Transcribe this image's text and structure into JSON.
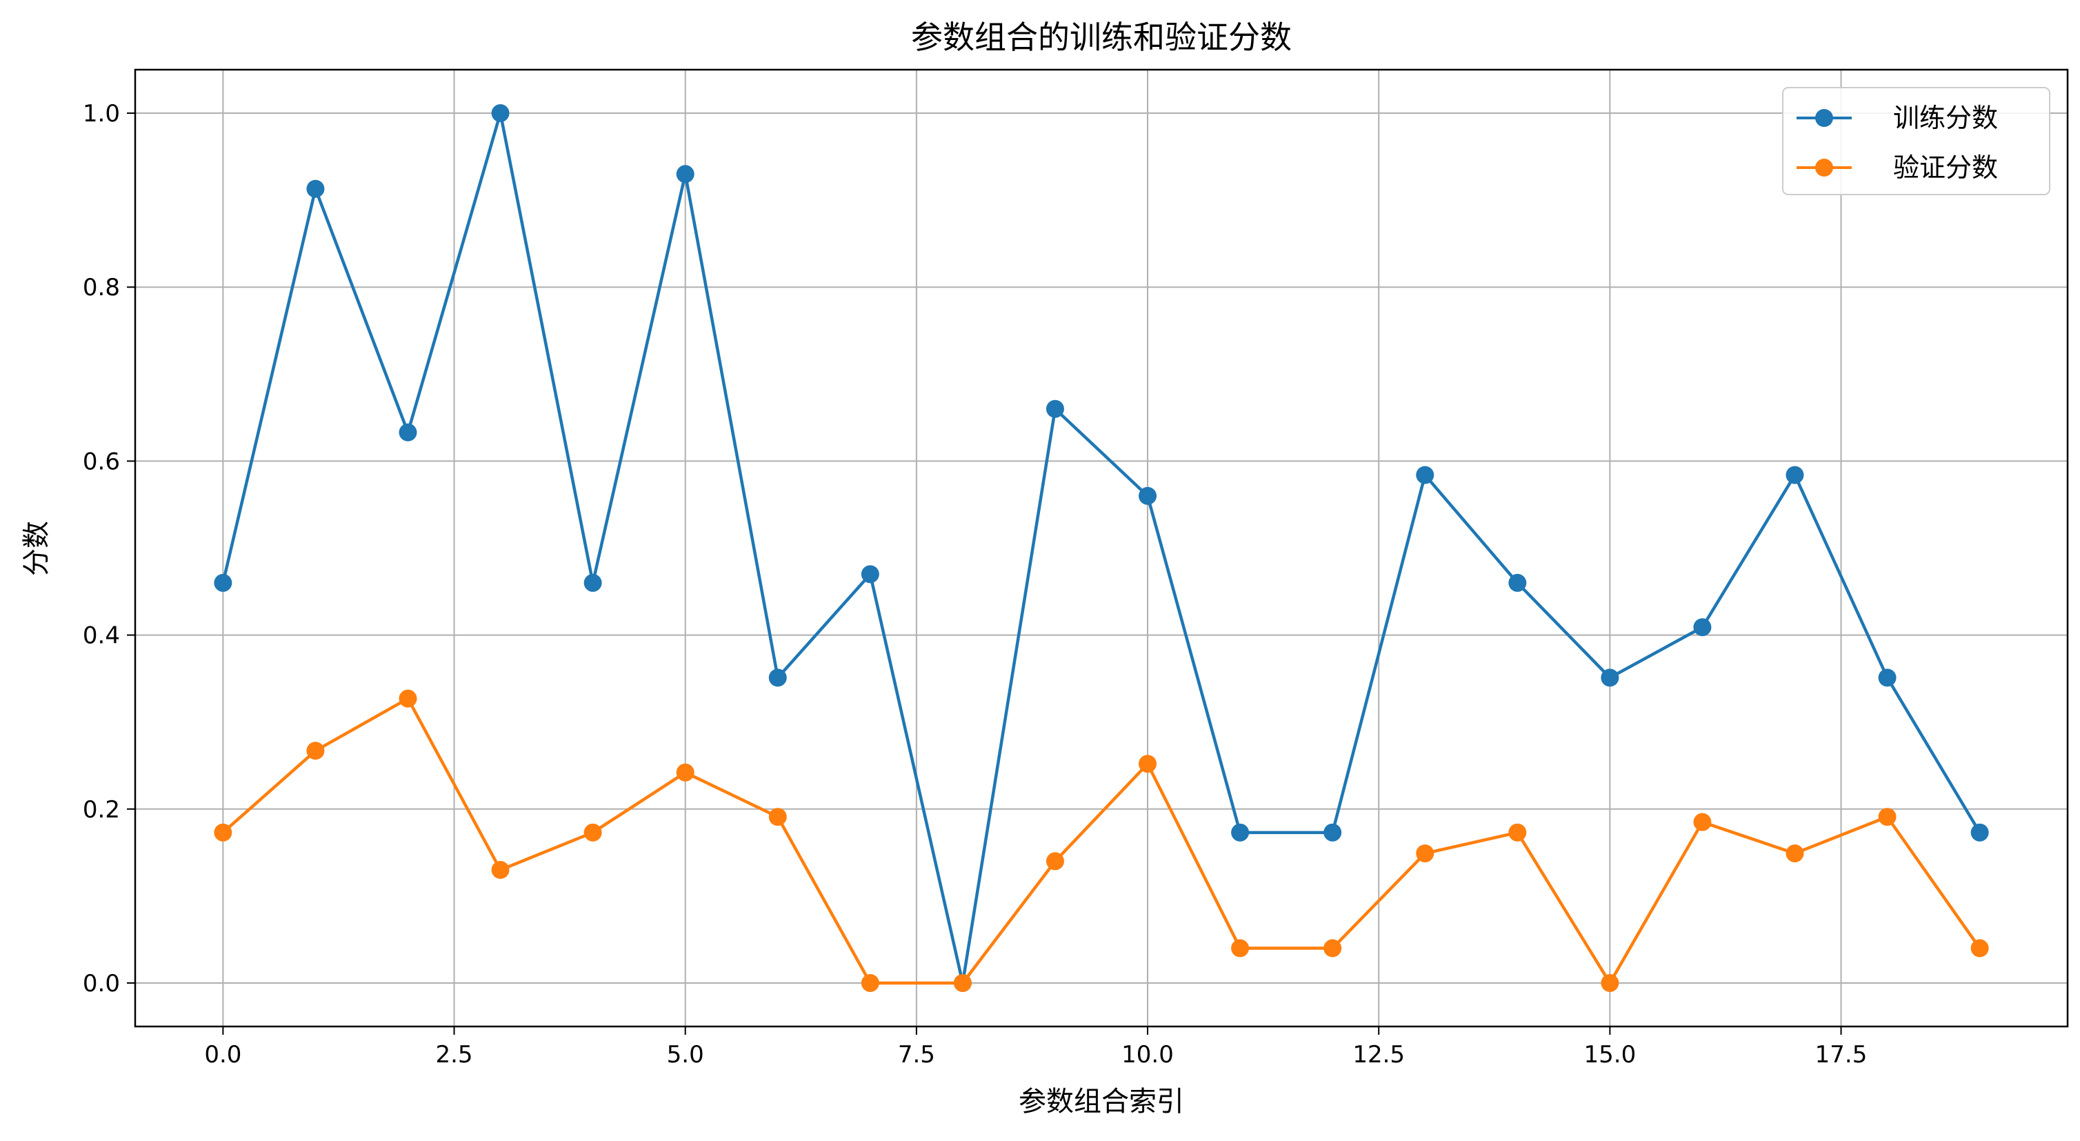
{
  "chart_data": {
    "type": "line",
    "title": "参数组合的训练和验证分数",
    "xlabel": "参数组合索引",
    "ylabel": "分数",
    "x": [
      0,
      1,
      2,
      3,
      4,
      5,
      6,
      7,
      8,
      9,
      10,
      11,
      12,
      13,
      14,
      15,
      16,
      17,
      18,
      19
    ],
    "xlim": [
      -0.95,
      19.95
    ],
    "ylim": [
      -0.05,
      1.05
    ],
    "xticks": [
      0,
      2.5,
      5,
      7.5,
      10,
      12.5,
      15,
      17.5
    ],
    "xtick_labels": [
      "0.0",
      "2.5",
      "5.0",
      "7.5",
      "10.0",
      "12.5",
      "15.0",
      "17.5"
    ],
    "yticks": [
      0,
      0.2,
      0.4,
      0.6,
      0.8,
      1.0
    ],
    "ytick_labels": [
      "0.0",
      "0.2",
      "0.4",
      "0.6",
      "0.8",
      "1.0"
    ],
    "grid": true,
    "legend_position": "top-right",
    "series": [
      {
        "name": "训练分数",
        "color": "#1f77b4",
        "marker": "circle",
        "values": [
          0.46,
          0.913,
          0.633,
          1.0,
          0.46,
          0.93,
          0.351,
          0.47,
          0.0,
          0.66,
          0.56,
          0.173,
          0.173,
          0.584,
          0.46,
          0.351,
          0.409,
          0.584,
          0.351,
          0.173
        ]
      },
      {
        "name": "验证分数",
        "color": "#ff7f0e",
        "marker": "circle",
        "values": [
          0.173,
          0.267,
          0.327,
          0.13,
          0.173,
          0.242,
          0.191,
          0.0,
          0.0,
          0.14,
          0.252,
          0.04,
          0.04,
          0.149,
          0.173,
          0.0,
          0.185,
          0.149,
          0.191,
          0.04
        ]
      }
    ]
  }
}
